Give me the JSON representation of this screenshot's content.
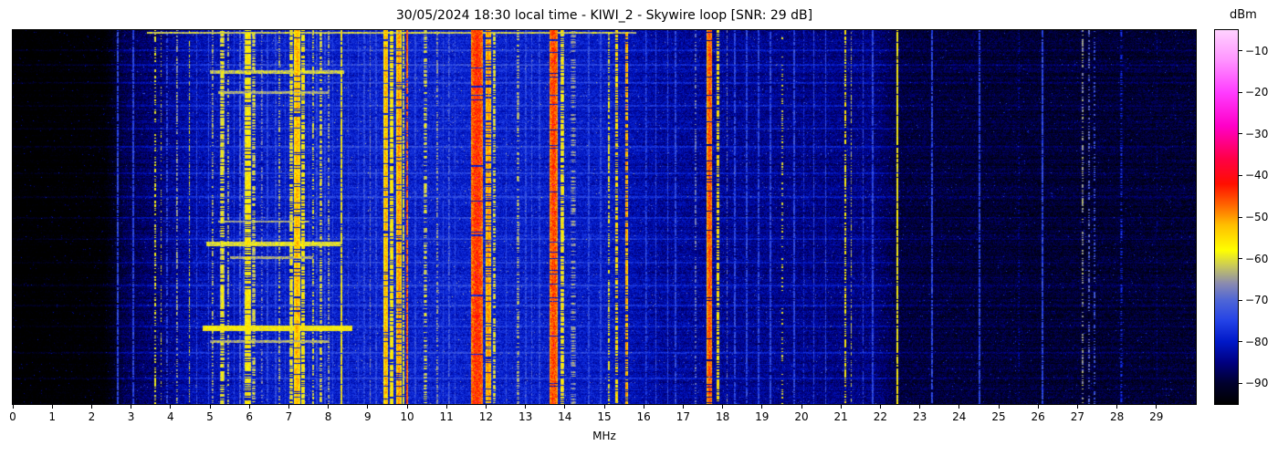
{
  "title": "30/05/2024 18:30 local time - KIWI_2 - Skywire loop [SNR: 29 dB]",
  "colorbar": {
    "label": "dBm",
    "ticks": [
      -10,
      -20,
      -30,
      -40,
      -50,
      -60,
      -70,
      -80,
      -90
    ],
    "range": [
      -95,
      -5
    ]
  },
  "chart_data": {
    "type": "heatmap",
    "title": "30/05/2024 18:30 local time - KIWI_2 - Skywire loop [SNR: 29 dB]",
    "xlabel": "MHz",
    "x_range": [
      0,
      30
    ],
    "x_ticks": [
      0,
      1,
      2,
      3,
      4,
      5,
      6,
      7,
      8,
      9,
      10,
      11,
      12,
      13,
      14,
      15,
      16,
      17,
      18,
      19,
      20,
      21,
      22,
      23,
      24,
      25,
      26,
      27,
      28,
      29
    ],
    "value_unit": "dBm",
    "value_range": [
      -95,
      -5
    ],
    "legend_position": "right-colorbar",
    "grid": false,
    "description": "HF spectrogram waterfall 0-30 MHz; black ~-95 dBm noise floor below 2.5 MHz, blue ~-80 dBm floor mid-band, strong shortwave broadcast bands in yellow/red near 6, 7.2, 9.5-10, 11.7-12, 13.7, 15.3, 17.7 MHz",
    "colormap_stops": [
      [
        -95,
        "#000000"
      ],
      [
        -90,
        "#00002e"
      ],
      [
        -85,
        "#000080"
      ],
      [
        -80,
        "#0018c8"
      ],
      [
        -75,
        "#2342e6"
      ],
      [
        -70,
        "#4f66d6"
      ],
      [
        -66,
        "#8a8ab0"
      ],
      [
        -62,
        "#c6c65e"
      ],
      [
        -58,
        "#ffff00"
      ],
      [
        -52,
        "#ffbf00"
      ],
      [
        -47,
        "#ff6400"
      ],
      [
        -42,
        "#ff0e00"
      ],
      [
        -36,
        "#ff0046"
      ],
      [
        -28,
        "#ff00c8"
      ],
      [
        -20,
        "#ff3cff"
      ],
      [
        -12,
        "#ff96ff"
      ],
      [
        -5,
        "#ffd2ff"
      ]
    ],
    "noise_floor_profile": [
      [
        0,
        -97
      ],
      [
        2.3,
        -96
      ],
      [
        2.8,
        -88
      ],
      [
        3.5,
        -86
      ],
      [
        4.5,
        -82
      ],
      [
        6,
        -80
      ],
      [
        9,
        -79
      ],
      [
        12,
        -79
      ],
      [
        15,
        -80
      ],
      [
        16.5,
        -83
      ],
      [
        19,
        -84
      ],
      [
        21.8,
        -85
      ],
      [
        22.5,
        -89
      ],
      [
        26,
        -90
      ],
      [
        30,
        -90
      ]
    ],
    "signal_bands": [
      {
        "f": 3.6,
        "w": 0.05,
        "level": -58,
        "duty": 0.45
      },
      {
        "f": 3.75,
        "w": 0.04,
        "level": -60,
        "duty": 0.4
      },
      {
        "f": 3.9,
        "w": 0.03,
        "level": -70,
        "duty": 0.6
      },
      {
        "f": 4.15,
        "w": 0.04,
        "level": -63,
        "duty": 0.5
      },
      {
        "f": 4.47,
        "w": 0.04,
        "level": -60,
        "duty": 0.55
      },
      {
        "f": 5.05,
        "w": 0.05,
        "level": -62,
        "duty": 0.5
      },
      {
        "f": 5.3,
        "w": 0.1,
        "level": -58,
        "duty": 0.7
      },
      {
        "f": 5.45,
        "w": 0.05,
        "level": -62,
        "duty": 0.5
      },
      {
        "f": 5.75,
        "w": 0.06,
        "level": -70,
        "duty": 0.85
      },
      {
        "f": 5.95,
        "w": 0.18,
        "level": -56,
        "duty": 0.8
      },
      {
        "f": 6.1,
        "w": 0.08,
        "level": -60,
        "duty": 0.6
      },
      {
        "f": 6.3,
        "w": 0.05,
        "level": -66,
        "duty": 0.5
      },
      {
        "f": 6.75,
        "w": 0.05,
        "level": -62,
        "duty": 0.5
      },
      {
        "f": 7.05,
        "w": 0.08,
        "level": -58,
        "duty": 0.7
      },
      {
        "f": 7.2,
        "w": 0.16,
        "level": -52,
        "duty": 0.85
      },
      {
        "f": 7.35,
        "w": 0.1,
        "level": -56,
        "duty": 0.7
      },
      {
        "f": 7.6,
        "w": 0.06,
        "level": -60,
        "duty": 0.5
      },
      {
        "f": 7.8,
        "w": 0.05,
        "level": -58,
        "duty": 0.55
      },
      {
        "f": 8.0,
        "w": 0.04,
        "level": -62,
        "duty": 0.5
      },
      {
        "f": 8.33,
        "w": 0.05,
        "level": -56,
        "duty": 0.85
      },
      {
        "f": 9.05,
        "w": 0.04,
        "level": -68,
        "duty": 0.7
      },
      {
        "f": 9.45,
        "w": 0.12,
        "level": -52,
        "duty": 0.9
      },
      {
        "f": 9.6,
        "w": 0.1,
        "level": -56,
        "duty": 0.8
      },
      {
        "f": 9.78,
        "w": 0.12,
        "level": -50,
        "duty": 0.85
      },
      {
        "f": 9.9,
        "w": 0.06,
        "level": -58,
        "duty": 0.7
      },
      {
        "f": 9.98,
        "w": 0.05,
        "level": -45,
        "duty": 0.9
      },
      {
        "f": 10.45,
        "w": 0.08,
        "level": -60,
        "duty": 0.5
      },
      {
        "f": 10.75,
        "w": 0.05,
        "level": -64,
        "duty": 0.5
      },
      {
        "f": 11.05,
        "w": 0.04,
        "level": -70,
        "duty": 0.8
      },
      {
        "f": 11.76,
        "w": 0.32,
        "level": -44,
        "duty": 0.97
      },
      {
        "f": 12.05,
        "w": 0.14,
        "level": -50,
        "duty": 0.8
      },
      {
        "f": 12.2,
        "w": 0.06,
        "level": -58,
        "duty": 0.6
      },
      {
        "f": 12.8,
        "w": 0.06,
        "level": -62,
        "duty": 0.5
      },
      {
        "f": 13.15,
        "w": 0.04,
        "level": -72,
        "duty": 0.8
      },
      {
        "f": 13.7,
        "w": 0.22,
        "level": -45,
        "duty": 0.96
      },
      {
        "f": 13.92,
        "w": 0.08,
        "level": -56,
        "duty": 0.7
      },
      {
        "f": 14.2,
        "w": 0.12,
        "level": -64,
        "duty": 0.4
      },
      {
        "f": 15.1,
        "w": 0.05,
        "level": -58,
        "duty": 0.6
      },
      {
        "f": 15.3,
        "w": 0.08,
        "level": -54,
        "duty": 0.65
      },
      {
        "f": 15.55,
        "w": 0.06,
        "level": -50,
        "duty": 0.7
      },
      {
        "f": 16.05,
        "w": 0.03,
        "level": -72,
        "duty": 0.8
      },
      {
        "f": 17.3,
        "w": 0.04,
        "level": -66,
        "duty": 0.5
      },
      {
        "f": 17.66,
        "w": 0.14,
        "level": -46,
        "duty": 0.92
      },
      {
        "f": 17.87,
        "w": 0.06,
        "level": -54,
        "duty": 0.7
      },
      {
        "f": 18.1,
        "w": 0.04,
        "level": -68,
        "duty": 0.5
      },
      {
        "f": 19.5,
        "w": 0.05,
        "level": -58,
        "duty": 0.25
      },
      {
        "f": 20.05,
        "w": 0.03,
        "level": -76,
        "duty": 0.6
      },
      {
        "f": 21.1,
        "w": 0.06,
        "level": -56,
        "duty": 0.6
      },
      {
        "f": 21.25,
        "w": 0.04,
        "level": -62,
        "duty": 0.5
      },
      {
        "f": 21.55,
        "w": 0.03,
        "level": -74,
        "duty": 0.7
      },
      {
        "f": 22.42,
        "w": 0.04,
        "level": -56,
        "duty": 0.9
      },
      {
        "f": 25.5,
        "w": 0.03,
        "level": -80,
        "duty": 0.3
      },
      {
        "f": 27.12,
        "w": 0.06,
        "level": -64,
        "duty": 0.45
      },
      {
        "f": 27.28,
        "w": 0.05,
        "level": -68,
        "duty": 0.4
      },
      {
        "f": 27.42,
        "w": 0.04,
        "level": -70,
        "duty": 0.35
      },
      {
        "f": 28.1,
        "w": 0.05,
        "level": -76,
        "duty": 0.4
      },
      {
        "f": 29.0,
        "w": 0.02,
        "level": -82,
        "duty": 0.3
      }
    ],
    "carriers": {
      "freqs": [
        2.65,
        3.05,
        4.65,
        4.95,
        5.6,
        5.85,
        6.45,
        6.65,
        6.9,
        7.5,
        7.7,
        7.9,
        8.1,
        8.5,
        8.75,
        8.9,
        9.2,
        10.2,
        10.9,
        11.2,
        12.5,
        13.0,
        13.35,
        14.6,
        14.9,
        16.3,
        16.6,
        16.8,
        18.3,
        18.6,
        18.9,
        19.2,
        19.8,
        20.3,
        20.6,
        21.8,
        23.3,
        24.5,
        26.1
      ],
      "level": -74
    },
    "horizontal_bursts": [
      {
        "row": 0.004,
        "f1": 3.4,
        "f2": 15.8,
        "level": -62,
        "rows": 2
      },
      {
        "row": 0.107,
        "f1": 5.0,
        "f2": 8.4,
        "level": -62,
        "rows": 4
      },
      {
        "row": 0.163,
        "f1": 5.2,
        "f2": 8.0,
        "level": -64,
        "rows": 3
      },
      {
        "row": 0.51,
        "f1": 5.2,
        "f2": 7.5,
        "level": -64,
        "rows": 2
      },
      {
        "row": 0.565,
        "f1": 4.9,
        "f2": 8.3,
        "level": -60,
        "rows": 5
      },
      {
        "row": 0.605,
        "f1": 5.5,
        "f2": 7.6,
        "level": -64,
        "rows": 3
      },
      {
        "row": 0.79,
        "f1": 4.8,
        "f2": 8.6,
        "level": -58,
        "rows": 6
      },
      {
        "row": 0.83,
        "f1": 5.0,
        "f2": 8.0,
        "level": -64,
        "rows": 3
      }
    ],
    "elevated_rows": [
      0.05,
      0.09,
      0.14,
      0.2,
      0.26,
      0.31,
      0.38,
      0.445,
      0.5,
      0.555,
      0.62,
      0.68,
      0.735,
      0.79,
      0.86,
      0.93
    ]
  }
}
